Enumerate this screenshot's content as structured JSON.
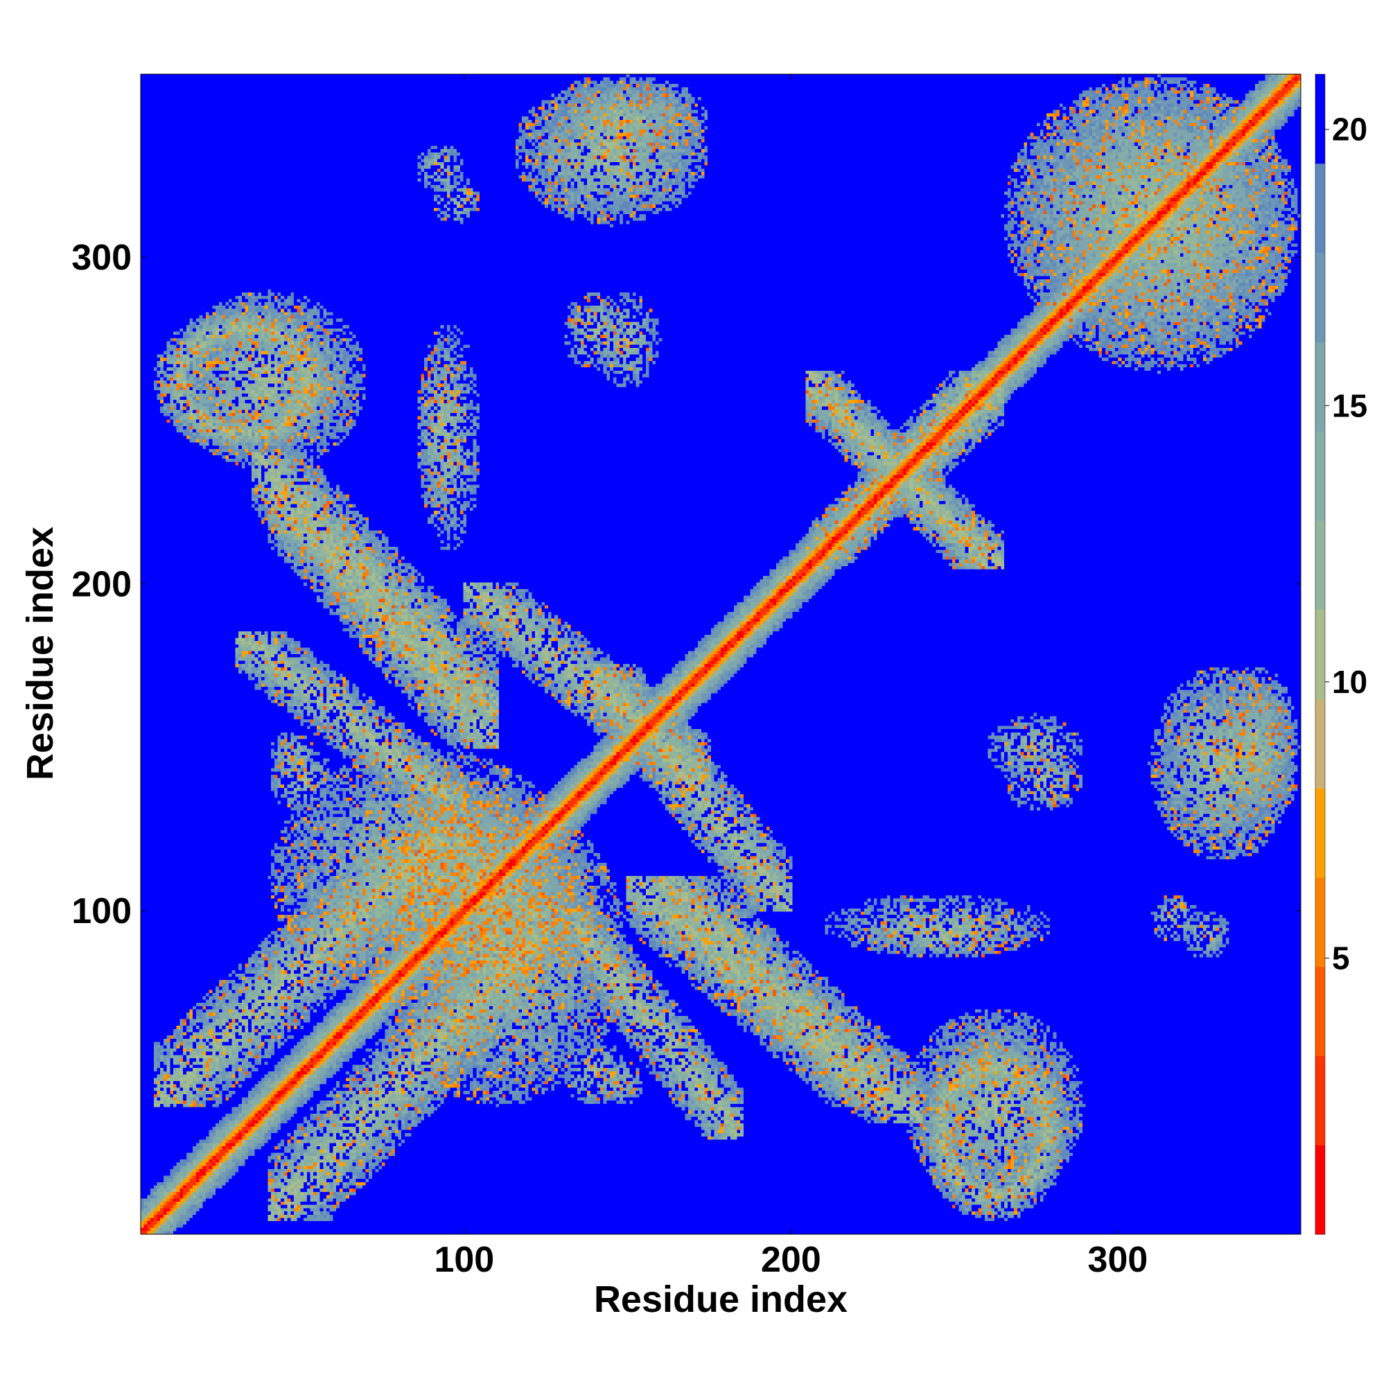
{
  "chart_data": {
    "type": "heatmap",
    "title": "",
    "xlabel": "Residue index",
    "ylabel": "Residue index",
    "xlim": [
      1,
      356
    ],
    "ylim": [
      1,
      356
    ],
    "x_ticks": [
      100,
      200,
      300
    ],
    "y_ticks": [
      100,
      200,
      300
    ],
    "colorbar": {
      "range": [
        0,
        21
      ],
      "ticks": [
        5,
        10,
        15,
        20
      ],
      "palette": [
        "#ff0000",
        "#ff3300",
        "#ff5a00",
        "#ff8000",
        "#ffa000",
        "#c9b277",
        "#a8bd8c",
        "#93b59c",
        "#85aea6",
        "#7fa6ad",
        "#6e97b6",
        "#5f89bd",
        "#0000ff"
      ],
      "out_of_range_color": "#0000ff"
    },
    "diagonal": {
      "width_residues": 3,
      "color": "#ff0000"
    },
    "contact_regions": [
      {
        "x": [
          5,
          95
        ],
        "y": [
          40,
          125
        ],
        "shape": "band-diagonal"
      },
      {
        "x": [
          40,
          135
        ],
        "y": [
          70,
          150
        ],
        "shape": "blob"
      },
      {
        "x": [
          80,
          140
        ],
        "y": [
          80,
          130
        ],
        "shape": "blob"
      },
      {
        "x": [
          80,
          115
        ],
        "y": [
          100,
          140
        ],
        "shape": "blob"
      },
      {
        "x": [
          130,
          185
        ],
        "y": [
          30,
          100
        ],
        "shape": "band-anti"
      },
      {
        "x": [
          150,
          230
        ],
        "y": [
          40,
          110
        ],
        "shape": "band-anti"
      },
      {
        "x": [
          235,
          290
        ],
        "y": [
          10,
          70
        ],
        "shape": "blob"
      },
      {
        "x": [
          5,
          60
        ],
        "y": [
          240,
          285
        ],
        "shape": "ring"
      },
      {
        "x": [
          35,
          110
        ],
        "y": [
          160,
          240
        ],
        "shape": "band-anti"
      },
      {
        "x": [
          100,
          175
        ],
        "y": [
          140,
          200
        ],
        "shape": "band-anti"
      },
      {
        "x": [
          205,
          265
        ],
        "y": [
          205,
          260
        ],
        "shape": "cross"
      },
      {
        "x": [
          270,
          356
        ],
        "y": [
          265,
          356
        ],
        "shape": "blob"
      },
      {
        "x": [
          125,
          175
        ],
        "y": [
          330,
          356
        ],
        "shape": "blob"
      },
      {
        "x": [
          310,
          356
        ],
        "y": [
          115,
          175
        ],
        "shape": "blob"
      },
      {
        "x": [
          265,
          290
        ],
        "y": [
          130,
          150
        ],
        "shape": "patch"
      },
      {
        "x": [
          85,
          100
        ],
        "y": [
          220,
          275
        ],
        "shape": "patch"
      },
      {
        "x": [
          140,
          160
        ],
        "y": [
          260,
          290
        ],
        "shape": "patch"
      },
      {
        "x": [
          85,
          100
        ],
        "y": [
          320,
          335
        ],
        "shape": "patch"
      },
      {
        "x": [
          40,
          55
        ],
        "y": [
          140,
          155
        ],
        "shape": "patch"
      },
      {
        "x": [
          210,
          280
        ],
        "y": [
          85,
          105
        ],
        "shape": "patch"
      },
      {
        "x": [
          310,
          325
        ],
        "y": [
          90,
          105
        ],
        "shape": "patch"
      },
      {
        "x": [
          130,
          150
        ],
        "y": [
          40,
          60
        ],
        "shape": "patch"
      }
    ]
  }
}
